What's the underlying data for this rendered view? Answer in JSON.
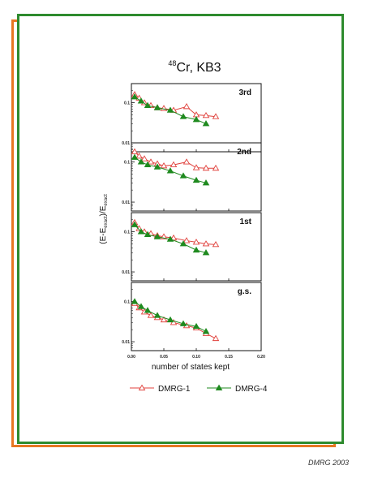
{
  "chart_data": {
    "type": "line",
    "title_super": "48",
    "title_main": "Cr, KB3",
    "xlabel": "number of states kept",
    "ylabel_parts": [
      "(E-E",
      "exact",
      ")/E",
      "exact"
    ],
    "x_ticks": [
      0.0,
      0.05,
      0.1,
      0.15,
      0.2
    ],
    "x_tick_labels": [
      "0.00",
      "0.05",
      "0.10",
      "0.15",
      "0.20"
    ],
    "xlim": [
      0.0,
      0.2
    ],
    "y_ticks": [
      0.1,
      0.01
    ],
    "y_tick_labels": [
      "0.1",
      "0.01"
    ],
    "ylim_log": [
      0.006,
      0.3
    ],
    "log_y": true,
    "legend": [
      "DMRG-1",
      "DMRG-4"
    ],
    "legend_placement": "bottom",
    "colors": {
      "DMRG-1": "#e0413c",
      "DMRG-4": "#1f8a1f"
    },
    "panels": [
      {
        "label": "3rd",
        "series": [
          {
            "name": "DMRG-1",
            "x": [
              0.005,
              0.012,
              0.02,
              0.03,
              0.04,
              0.05,
              0.065,
              0.085,
              0.1,
              0.115,
              0.13
            ],
            "y": [
              0.16,
              0.13,
              0.1,
              0.085,
              0.075,
              0.072,
              0.065,
              0.08,
              0.05,
              0.048,
              0.045
            ]
          },
          {
            "name": "DMRG-4",
            "x": [
              0.005,
              0.015,
              0.025,
              0.04,
              0.06,
              0.08,
              0.1,
              0.115
            ],
            "y": [
              0.14,
              0.11,
              0.085,
              0.075,
              0.065,
              0.045,
              0.038,
              0.03
            ]
          }
        ]
      },
      {
        "label": "2nd",
        "series": [
          {
            "name": "DMRG-1",
            "x": [
              0.005,
              0.012,
              0.02,
              0.03,
              0.04,
              0.05,
              0.065,
              0.085,
              0.1,
              0.115,
              0.13
            ],
            "y": [
              0.18,
              0.14,
              0.12,
              0.1,
              0.09,
              0.08,
              0.085,
              0.1,
              0.072,
              0.07,
              0.07
            ]
          },
          {
            "name": "DMRG-4",
            "x": [
              0.005,
              0.015,
              0.025,
              0.04,
              0.06,
              0.08,
              0.1,
              0.115
            ],
            "y": [
              0.13,
              0.1,
              0.085,
              0.075,
              0.06,
              0.045,
              0.035,
              0.03
            ]
          }
        ]
      },
      {
        "label": "1st",
        "series": [
          {
            "name": "DMRG-1",
            "x": [
              0.005,
              0.012,
              0.02,
              0.03,
              0.04,
              0.05,
              0.065,
              0.085,
              0.1,
              0.115,
              0.13
            ],
            "y": [
              0.17,
              0.12,
              0.1,
              0.09,
              0.08,
              0.075,
              0.07,
              0.06,
              0.055,
              0.05,
              0.048
            ]
          },
          {
            "name": "DMRG-4",
            "x": [
              0.005,
              0.015,
              0.025,
              0.04,
              0.06,
              0.08,
              0.1,
              0.115
            ],
            "y": [
              0.15,
              0.1,
              0.085,
              0.075,
              0.065,
              0.05,
              0.035,
              0.03
            ]
          }
        ]
      },
      {
        "label": "g.s.",
        "series": [
          {
            "name": "DMRG-1",
            "x": [
              0.005,
              0.012,
              0.02,
              0.03,
              0.04,
              0.05,
              0.065,
              0.085,
              0.1,
              0.115,
              0.13
            ],
            "y": [
              0.09,
              0.07,
              0.055,
              0.045,
              0.04,
              0.035,
              0.03,
              0.025,
              0.022,
              0.016,
              0.012
            ]
          },
          {
            "name": "DMRG-4",
            "x": [
              0.005,
              0.015,
              0.025,
              0.04,
              0.06,
              0.08,
              0.1,
              0.115
            ],
            "y": [
              0.1,
              0.075,
              0.06,
              0.045,
              0.035,
              0.028,
              0.024,
              0.018
            ]
          }
        ]
      }
    ]
  },
  "footer": "DMRG 2003"
}
